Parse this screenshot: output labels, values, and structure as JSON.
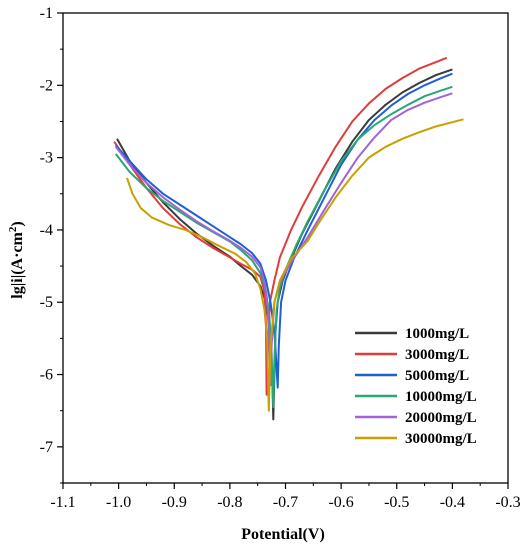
{
  "chart_data": {
    "type": "line",
    "title": "",
    "xlabel": "Potential(V)",
    "ylabel": "lg|i|(A·cm",
    "ylabel_sup": "2",
    "ylabel_close": ")",
    "xlim": [
      -1.1,
      -0.3
    ],
    "ylim": [
      -7.5,
      -1
    ],
    "x_ticks": [
      -1.1,
      -1.0,
      -0.9,
      -0.8,
      -0.7,
      -0.6,
      -0.5,
      -0.4,
      -0.3
    ],
    "x_tick_labels": [
      "-1.1",
      "-1.0",
      "-0.9",
      "-0.8",
      "-0.7",
      "-0.6",
      "-0.5",
      "-0.4",
      "-0.3"
    ],
    "y_ticks": [
      -7,
      -6,
      -5,
      -4,
      -3,
      -2,
      -1
    ],
    "y_tick_labels": [
      "-7",
      "-6",
      "-5",
      "-4",
      "-3",
      "-2",
      "-1"
    ],
    "grid": false,
    "legend_position": "bottom-right",
    "series": [
      {
        "name": "1000mg/L",
        "color": "#3a3a3a",
        "points": [
          [
            -1.003,
            -2.74
          ],
          [
            -0.98,
            -3.05
          ],
          [
            -0.95,
            -3.35
          ],
          [
            -0.92,
            -3.62
          ],
          [
            -0.89,
            -3.85
          ],
          [
            -0.86,
            -4.05
          ],
          [
            -0.83,
            -4.22
          ],
          [
            -0.8,
            -4.37
          ],
          [
            -0.78,
            -4.5
          ],
          [
            -0.76,
            -4.62
          ],
          [
            -0.745,
            -4.78
          ],
          [
            -0.735,
            -5.0
          ],
          [
            -0.728,
            -5.4
          ],
          [
            -0.724,
            -6.0
          ],
          [
            -0.722,
            -6.62
          ],
          [
            -0.72,
            -6.0
          ],
          [
            -0.718,
            -5.4
          ],
          [
            -0.714,
            -5.0
          ],
          [
            -0.705,
            -4.7
          ],
          [
            -0.69,
            -4.4
          ],
          [
            -0.67,
            -4.05
          ],
          [
            -0.64,
            -3.6
          ],
          [
            -0.61,
            -3.15
          ],
          [
            -0.58,
            -2.78
          ],
          [
            -0.55,
            -2.48
          ],
          [
            -0.52,
            -2.27
          ],
          [
            -0.49,
            -2.1
          ],
          [
            -0.46,
            -1.97
          ],
          [
            -0.43,
            -1.86
          ],
          [
            -0.4,
            -1.78
          ]
        ]
      },
      {
        "name": "3000mg/L",
        "color": "#e03c3c",
        "points": [
          [
            -1.008,
            -2.78
          ],
          [
            -0.98,
            -3.1
          ],
          [
            -0.95,
            -3.42
          ],
          [
            -0.92,
            -3.7
          ],
          [
            -0.89,
            -3.92
          ],
          [
            -0.86,
            -4.1
          ],
          [
            -0.83,
            -4.25
          ],
          [
            -0.8,
            -4.38
          ],
          [
            -0.78,
            -4.47
          ],
          [
            -0.76,
            -4.55
          ],
          [
            -0.745,
            -4.65
          ],
          [
            -0.738,
            -4.85
          ],
          [
            -0.735,
            -5.3
          ],
          [
            -0.734,
            -6.28
          ],
          [
            -0.732,
            -5.6
          ],
          [
            -0.728,
            -5.0
          ],
          [
            -0.72,
            -4.7
          ],
          [
            -0.71,
            -4.38
          ],
          [
            -0.69,
            -4.0
          ],
          [
            -0.67,
            -3.68
          ],
          [
            -0.64,
            -3.25
          ],
          [
            -0.61,
            -2.85
          ],
          [
            -0.58,
            -2.5
          ],
          [
            -0.55,
            -2.25
          ],
          [
            -0.52,
            -2.05
          ],
          [
            -0.49,
            -1.9
          ],
          [
            -0.46,
            -1.77
          ],
          [
            -0.43,
            -1.68
          ],
          [
            -0.41,
            -1.62
          ]
        ]
      },
      {
        "name": "5000mg/L",
        "color": "#1f5fd6",
        "points": [
          [
            -1.005,
            -2.83
          ],
          [
            -0.98,
            -3.05
          ],
          [
            -0.95,
            -3.3
          ],
          [
            -0.92,
            -3.5
          ],
          [
            -0.89,
            -3.65
          ],
          [
            -0.86,
            -3.8
          ],
          [
            -0.83,
            -3.95
          ],
          [
            -0.8,
            -4.1
          ],
          [
            -0.78,
            -4.2
          ],
          [
            -0.76,
            -4.32
          ],
          [
            -0.745,
            -4.47
          ],
          [
            -0.735,
            -4.7
          ],
          [
            -0.727,
            -5.0
          ],
          [
            -0.72,
            -5.4
          ],
          [
            -0.716,
            -5.9
          ],
          [
            -0.714,
            -6.18
          ],
          [
            -0.712,
            -5.6
          ],
          [
            -0.708,
            -5.0
          ],
          [
            -0.7,
            -4.7
          ],
          [
            -0.685,
            -4.4
          ],
          [
            -0.66,
            -4.0
          ],
          [
            -0.63,
            -3.55
          ],
          [
            -0.6,
            -3.1
          ],
          [
            -0.57,
            -2.75
          ],
          [
            -0.54,
            -2.48
          ],
          [
            -0.51,
            -2.28
          ],
          [
            -0.48,
            -2.12
          ],
          [
            -0.45,
            -2.0
          ],
          [
            -0.42,
            -1.9
          ],
          [
            -0.4,
            -1.84
          ]
        ]
      },
      {
        "name": "10000mg/L",
        "color": "#2aa874",
        "points": [
          [
            -1.005,
            -2.95
          ],
          [
            -0.98,
            -3.2
          ],
          [
            -0.95,
            -3.42
          ],
          [
            -0.92,
            -3.6
          ],
          [
            -0.89,
            -3.75
          ],
          [
            -0.86,
            -3.9
          ],
          [
            -0.83,
            -4.03
          ],
          [
            -0.8,
            -4.16
          ],
          [
            -0.78,
            -4.28
          ],
          [
            -0.76,
            -4.42
          ],
          [
            -0.745,
            -4.6
          ],
          [
            -0.735,
            -4.85
          ],
          [
            -0.729,
            -5.2
          ],
          [
            -0.725,
            -5.7
          ],
          [
            -0.722,
            -6.45
          ],
          [
            -0.72,
            -5.8
          ],
          [
            -0.716,
            -5.1
          ],
          [
            -0.71,
            -4.8
          ],
          [
            -0.7,
            -4.55
          ],
          [
            -0.68,
            -4.2
          ],
          [
            -0.66,
            -3.88
          ],
          [
            -0.63,
            -3.45
          ],
          [
            -0.6,
            -3.05
          ],
          [
            -0.57,
            -2.75
          ],
          [
            -0.54,
            -2.55
          ],
          [
            -0.51,
            -2.4
          ],
          [
            -0.48,
            -2.27
          ],
          [
            -0.45,
            -2.15
          ],
          [
            -0.42,
            -2.07
          ],
          [
            -0.4,
            -2.02
          ]
        ]
      },
      {
        "name": "20000mg/L",
        "color": "#a064d8",
        "points": [
          [
            -1.005,
            -2.85
          ],
          [
            -0.98,
            -3.1
          ],
          [
            -0.95,
            -3.35
          ],
          [
            -0.92,
            -3.55
          ],
          [
            -0.89,
            -3.72
          ],
          [
            -0.86,
            -3.88
          ],
          [
            -0.83,
            -4.02
          ],
          [
            -0.8,
            -4.15
          ],
          [
            -0.78,
            -4.25
          ],
          [
            -0.76,
            -4.37
          ],
          [
            -0.745,
            -4.52
          ],
          [
            -0.737,
            -4.75
          ],
          [
            -0.732,
            -5.1
          ],
          [
            -0.729,
            -5.6
          ],
          [
            -0.727,
            -6.15
          ],
          [
            -0.725,
            -5.6
          ],
          [
            -0.72,
            -5.0
          ],
          [
            -0.71,
            -4.72
          ],
          [
            -0.69,
            -4.45
          ],
          [
            -0.66,
            -4.1
          ],
          [
            -0.63,
            -3.72
          ],
          [
            -0.6,
            -3.35
          ],
          [
            -0.57,
            -3.0
          ],
          [
            -0.54,
            -2.72
          ],
          [
            -0.51,
            -2.48
          ],
          [
            -0.48,
            -2.34
          ],
          [
            -0.45,
            -2.24
          ],
          [
            -0.42,
            -2.16
          ],
          [
            -0.4,
            -2.11
          ]
        ]
      },
      {
        "name": "30000mg/L",
        "color": "#c9a000",
        "points": [
          [
            -0.985,
            -3.28
          ],
          [
            -0.975,
            -3.5
          ],
          [
            -0.96,
            -3.7
          ],
          [
            -0.94,
            -3.83
          ],
          [
            -0.91,
            -3.93
          ],
          [
            -0.88,
            -4.0
          ],
          [
            -0.85,
            -4.1
          ],
          [
            -0.82,
            -4.22
          ],
          [
            -0.79,
            -4.33
          ],
          [
            -0.77,
            -4.45
          ],
          [
            -0.755,
            -4.6
          ],
          [
            -0.745,
            -4.82
          ],
          [
            -0.738,
            -5.1
          ],
          [
            -0.733,
            -5.5
          ],
          [
            -0.73,
            -6.5
          ],
          [
            -0.727,
            -5.6
          ],
          [
            -0.72,
            -5.0
          ],
          [
            -0.71,
            -4.7
          ],
          [
            -0.69,
            -4.4
          ],
          [
            -0.66,
            -4.15
          ],
          [
            -0.64,
            -3.9
          ],
          [
            -0.61,
            -3.55
          ],
          [
            -0.58,
            -3.25
          ],
          [
            -0.55,
            -3.0
          ],
          [
            -0.52,
            -2.85
          ],
          [
            -0.49,
            -2.74
          ],
          [
            -0.46,
            -2.65
          ],
          [
            -0.43,
            -2.57
          ],
          [
            -0.4,
            -2.51
          ],
          [
            -0.38,
            -2.47
          ]
        ]
      }
    ]
  }
}
